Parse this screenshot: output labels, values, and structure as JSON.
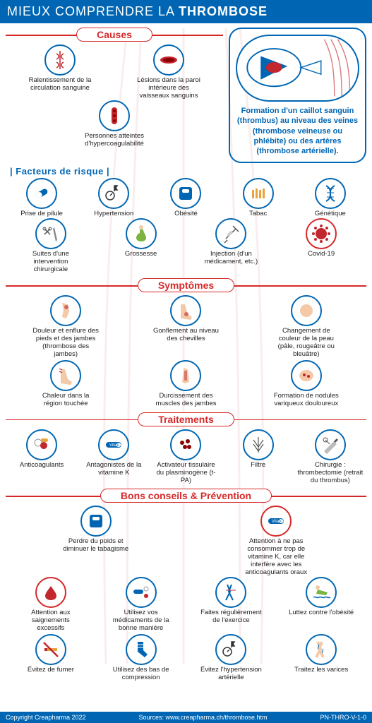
{
  "header": {
    "pre": "MIEUX COMPRENDRE LA ",
    "bold": "THROMBOSE"
  },
  "definition": "Formation d'un caillot sanguin (thrombus) au niveau des veines (thrombose veineuse ou phlébite) ou des artères (thrombose artérielle).",
  "sections": {
    "causes": "Causes",
    "risk_sub": "| Facteurs de risque |",
    "symptoms": "Symptômes",
    "treatments": "Traitements",
    "prevention": "Bons conseils & Prévention"
  },
  "causes": [
    {
      "label": "Ralentissement de la circulation sanguine",
      "icon": "veins"
    },
    {
      "label": "Lésions dans la paroi intérieure des vaisseaux sanguins",
      "icon": "vessel-cut"
    },
    {
      "label": "Personnes atteintes d'hypercoagulabilité",
      "icon": "artery"
    }
  ],
  "risks": [
    {
      "label": "Prise de pilule",
      "icon": "pill"
    },
    {
      "label": "Hypertension",
      "icon": "bp"
    },
    {
      "label": "Obésité",
      "icon": "scale"
    },
    {
      "label": "Tabac",
      "icon": "cigs"
    },
    {
      "label": "Génétique",
      "icon": "dna"
    },
    {
      "label": "Suites d'une intervention chirurgicale",
      "icon": "surgery"
    },
    {
      "label": "Grossesse",
      "icon": "pregnant"
    },
    {
      "label": "Injection (d'un médicament, etc.)",
      "icon": "syringe"
    },
    {
      "label": "Covid-19",
      "icon": "virus",
      "red": true
    }
  ],
  "symptoms": [
    {
      "label": "Douleur et enflure des pieds et des jambes (thrombose des jambes)",
      "icon": "leg-pain"
    },
    {
      "label": "Gonflement au niveau des chevilles",
      "icon": "ankle"
    },
    {
      "label": "Changement de couleur de la peau (pâle, rougeâtre ou bleuâtre)",
      "icon": "skin"
    },
    {
      "label": "Chaleur dans la région touchée",
      "icon": "heat"
    },
    {
      "label": "Durcissement des muscles des jambes",
      "icon": "muscle"
    },
    {
      "label": "Formation de nodules variqueux douloureux",
      "icon": "nodule"
    }
  ],
  "treatments": [
    {
      "label": "Anticoagulants",
      "icon": "pills"
    },
    {
      "label": "Antagonistes de la vitamine K",
      "icon": "vitk"
    },
    {
      "label": "Activateur tissulaire du plasminogène (t-PA)",
      "icon": "cells"
    },
    {
      "label": "Filtre",
      "icon": "filter"
    },
    {
      "label": "Chirurgie : thrombectomie (retrait du thrombus)",
      "icon": "scalpel"
    }
  ],
  "prevention_top": [
    {
      "label": "Perdre du poids et diminuer le tabagisme",
      "icon": "scale2"
    },
    {
      "label": "Attention à ne pas consommer trop de vitamine K, car elle interfère avec les anticoagulants oraux",
      "icon": "vitk",
      "red": true
    }
  ],
  "prevention": [
    {
      "label": "Attention aux saignements excessifs",
      "icon": "blood",
      "red": true
    },
    {
      "label": "Utilisez vos médicaments de la bonne manière",
      "icon": "meds"
    },
    {
      "label": "Faites régulièrement de l'exercice",
      "icon": "exercise"
    },
    {
      "label": "Luttez contre l'obésité",
      "icon": "swim"
    },
    {
      "label": "Évitez de fumer",
      "icon": "nosmoking"
    },
    {
      "label": "Utilisez des bas de compression",
      "icon": "sock"
    },
    {
      "label": "Évitez l'hypertension artérielle",
      "icon": "bp"
    },
    {
      "label": "Traitez les varices",
      "icon": "varicose"
    }
  ],
  "footer": {
    "copyright": "Copyright Creapharma 2022",
    "source": "Sources: www.creapharma.ch/thrombose.htm",
    "code": "PN-THRO-V-1-0"
  },
  "colors": {
    "primary": "#0066b3",
    "accent": "#d62828",
    "skin": "#f4c9a8",
    "red": "#c1272d"
  }
}
